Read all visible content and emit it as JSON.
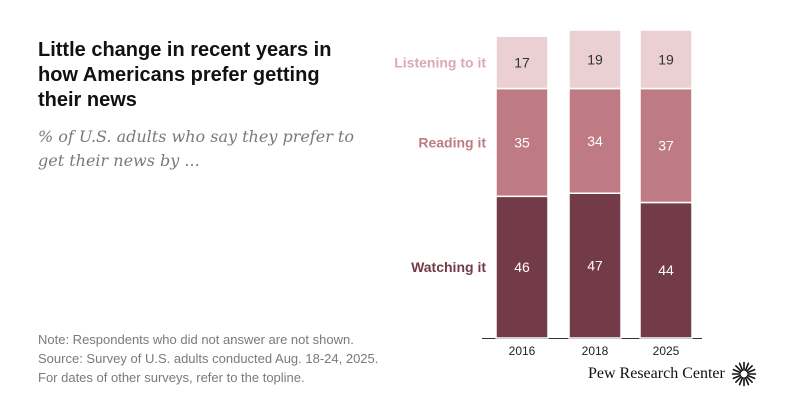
{
  "header": {
    "title": "Little change in recent years in how Americans prefer getting their news",
    "subtitle": "% of U.S. adults who say they prefer to get their news by ..."
  },
  "footer": {
    "note": "Note: Respondents who did not answer are not shown.",
    "source": "Source: Survey of U.S. adults conducted Aug. 18-24, 2025. For dates of other surveys, refer to the topline.",
    "brand": "Pew Research Center"
  },
  "colors": {
    "watching": "#733a47",
    "reading": "#be7b84",
    "listening": "#ead0d3",
    "watching_label": "#733a47",
    "reading_label": "#be7b84",
    "listening_label": "#dba9b0",
    "text_dark": "#ffffff",
    "text_light": "#333333"
  },
  "chart_data": {
    "type": "bar",
    "stacked": true,
    "orientation": "vertical",
    "categories": [
      "2016",
      "2018",
      "2025"
    ],
    "series": [
      {
        "name": "Watching it",
        "key": "watching",
        "values": [
          46,
          47,
          44
        ]
      },
      {
        "name": "Reading it",
        "key": "reading",
        "values": [
          35,
          34,
          37
        ]
      },
      {
        "name": "Listening to it",
        "key": "listening",
        "values": [
          17,
          19,
          19
        ]
      }
    ],
    "title": "Little change in recent years in how Americans prefer getting their news",
    "ylabel": "% of U.S. adults",
    "ylim": [
      0,
      100
    ],
    "legend": "left-inline"
  }
}
